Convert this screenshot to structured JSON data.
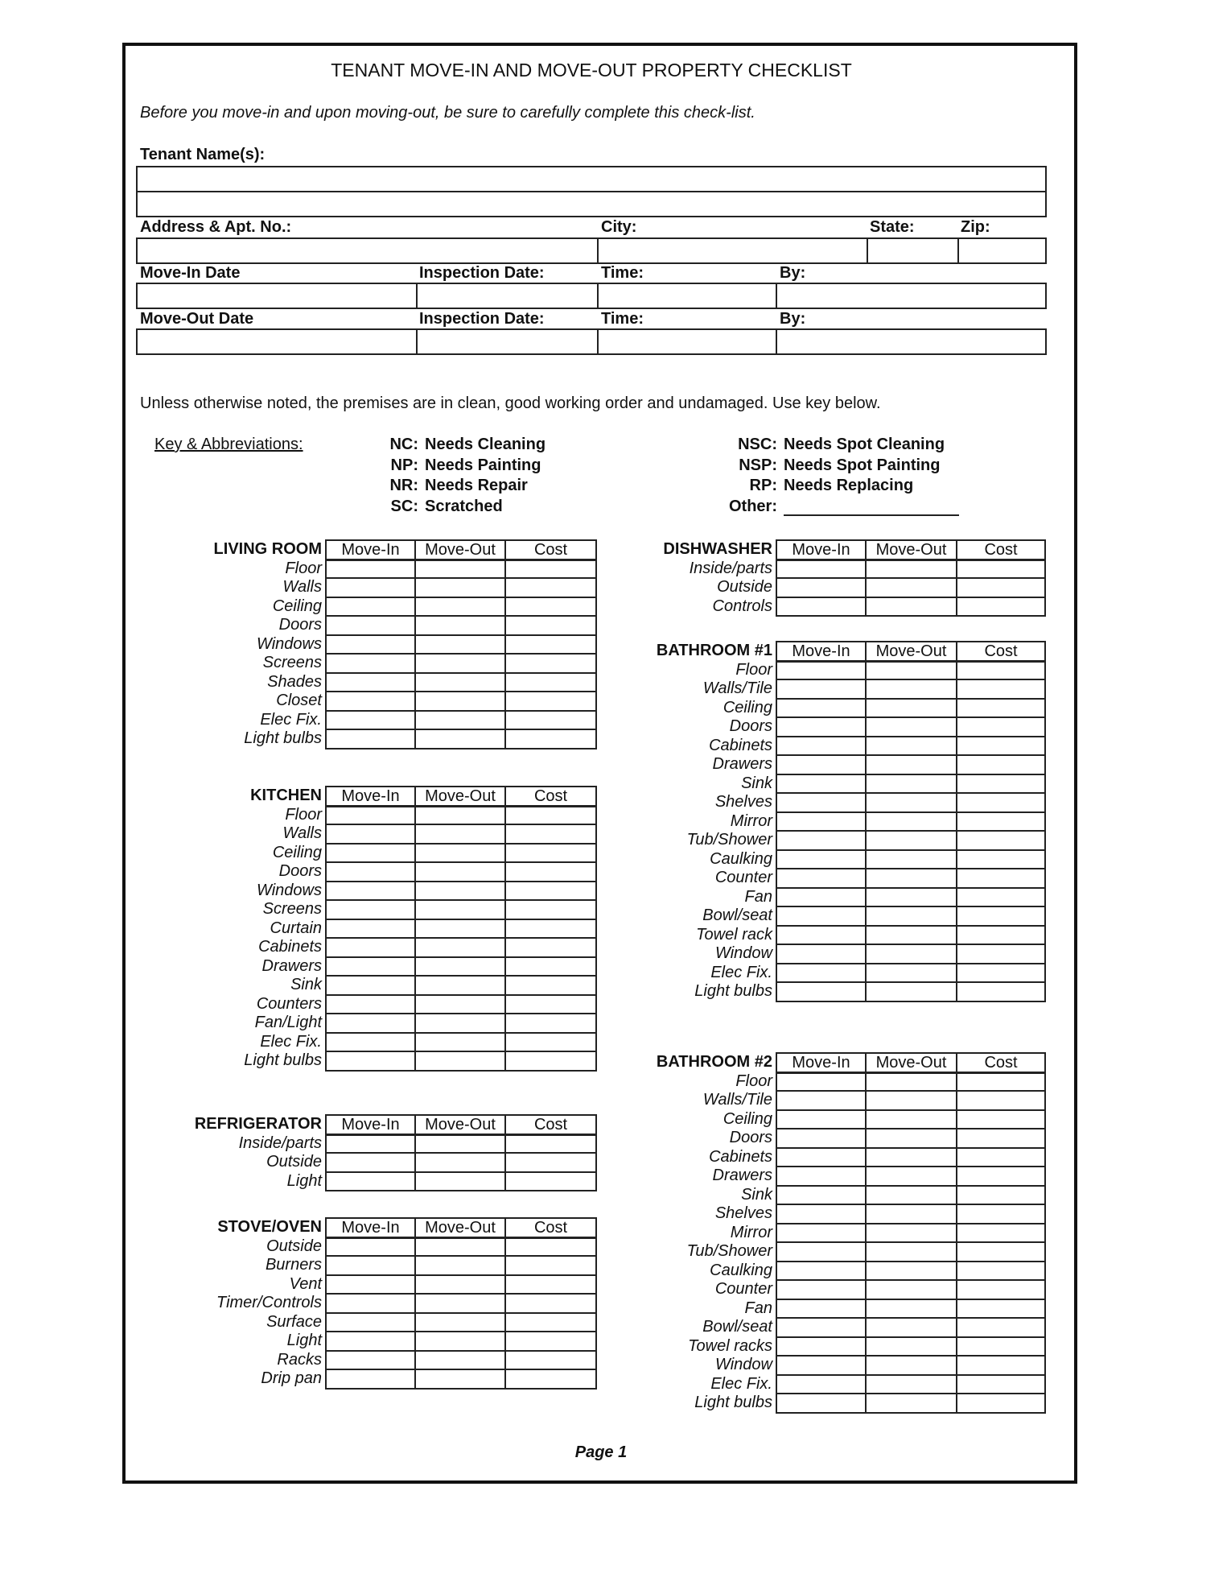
{
  "title": "TENANT MOVE-IN AND MOVE-OUT PROPERTY CHECKLIST",
  "subtitle": "Before you move-in and upon moving-out, be sure to carefully complete this check-list.",
  "fields": {
    "tenant_names": "Tenant Name(s):",
    "address": "Address & Apt. No.:",
    "city": "City:",
    "state": "State:",
    "zip": "Zip:",
    "move_in_date": "Move-In Date",
    "move_out_date": "Move-Out Date",
    "inspection_date": "Inspection Date:",
    "time": "Time:",
    "by": "By:"
  },
  "note": "Unless otherwise noted, the premises are in clean, good working order and undamaged.  Use key below.",
  "key": {
    "heading": "Key & Abbreviations:",
    "left": [
      {
        "abbr": "NC:",
        "text": "Needs Cleaning"
      },
      {
        "abbr": "NP:",
        "text": "Needs Painting"
      },
      {
        "abbr": "NR:",
        "text": "Needs Repair"
      },
      {
        "abbr": "SC:",
        "text": "Scratched"
      }
    ],
    "right": [
      {
        "abbr": "NSC:",
        "text": "Needs Spot Cleaning"
      },
      {
        "abbr": "NSP:",
        "text": "Needs Spot Painting"
      },
      {
        "abbr": "RP:",
        "text": "Needs Replacing"
      },
      {
        "abbr": "Other:",
        "text": ""
      }
    ]
  },
  "columns": [
    "Move-In",
    "Move-Out",
    "Cost"
  ],
  "sections": [
    {
      "name": "LIVING ROOM",
      "side": "left",
      "items": [
        "Floor",
        "Walls",
        "Ceiling",
        "Doors",
        "Windows",
        "Screens",
        "Shades",
        "Closet",
        "Elec Fix.",
        "Light bulbs"
      ]
    },
    {
      "name": "KITCHEN",
      "side": "left",
      "items": [
        "Floor",
        "Walls",
        "Ceiling",
        "Doors",
        "Windows",
        "Screens",
        "Curtain",
        "Cabinets",
        "Drawers",
        "Sink",
        "Counters",
        "Fan/Light",
        "Elec Fix.",
        "Light bulbs"
      ]
    },
    {
      "name": "REFRIGERATOR",
      "side": "left",
      "items": [
        "Inside/parts",
        "Outside",
        "Light"
      ]
    },
    {
      "name": "STOVE/OVEN",
      "side": "left",
      "items": [
        "Outside",
        "Burners",
        "Vent",
        "Timer/Controls",
        "Surface",
        "Light",
        "Racks",
        "Drip pan"
      ]
    },
    {
      "name": "DISHWASHER",
      "side": "right",
      "items": [
        "Inside/parts",
        "Outside",
        "Controls"
      ]
    },
    {
      "name": "BATHROOM #1",
      "side": "right",
      "items": [
        "Floor",
        "Walls/Tile",
        "Ceiling",
        "Doors",
        "Cabinets",
        "Drawers",
        "Sink",
        "Shelves",
        "Mirror",
        "Tub/Shower",
        "Caulking",
        "Counter",
        "Fan",
        "Bowl/seat",
        "Towel rack",
        "Window",
        "Elec Fix.",
        "Light bulbs"
      ]
    },
    {
      "name": "BATHROOM #2",
      "side": "right",
      "items": [
        "Floor",
        "Walls/Tile",
        "Ceiling",
        "Doors",
        "Cabinets",
        "Drawers",
        "Sink",
        "Shelves",
        "Mirror",
        "Tub/Shower",
        "Caulking",
        "Counter",
        "Fan",
        "Bowl/seat",
        "Towel racks",
        "Window",
        "Elec Fix.",
        "Light bulbs"
      ]
    }
  ],
  "footer": "Page 1"
}
